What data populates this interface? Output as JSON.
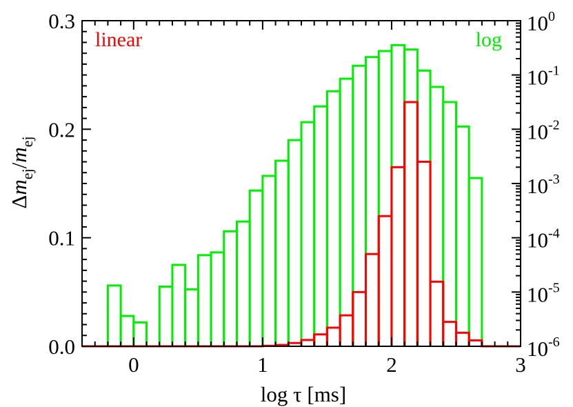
{
  "chart_data": {
    "type": "bar",
    "subtype": "step-histogram",
    "xlabel_prefix": "log",
    "xlabel_symbol": "τ",
    "xlabel_unit": "[ms]",
    "ylabel_delta": "Δ",
    "ylabel_m": "m",
    "ylabel_sub": "ej",
    "ylabel_slash": "/",
    "xlim": [
      -0.4,
      3.0
    ],
    "xticks": [
      {
        "value": 0,
        "label": "0"
      },
      {
        "value": 1,
        "label": "1"
      },
      {
        "value": 2,
        "label": "2"
      },
      {
        "value": 3,
        "label": "3"
      }
    ],
    "ylim_left": [
      0.0,
      0.3
    ],
    "yticks_left": [
      {
        "value": 0.0,
        "label": "0.0"
      },
      {
        "value": 0.1,
        "label": "0.1"
      },
      {
        "value": 0.2,
        "label": "0.2"
      },
      {
        "value": 0.3,
        "label": "0.3"
      }
    ],
    "ylim_right_log10": [
      -6,
      0
    ],
    "yticks_right": [
      {
        "value": 0,
        "base": "10",
        "exp": "0"
      },
      {
        "value": -1,
        "base": "10",
        "exp": "-1"
      },
      {
        "value": -2,
        "base": "10",
        "exp": "-2"
      },
      {
        "value": -3,
        "base": "10",
        "exp": "-3"
      },
      {
        "value": -4,
        "base": "10",
        "exp": "-4"
      },
      {
        "value": -5,
        "base": "10",
        "exp": "-5"
      },
      {
        "value": -6,
        "base": "10",
        "exp": "-6"
      }
    ],
    "bin_width": 0.1,
    "series": [
      {
        "name": "linear",
        "axis": "left",
        "color": "#ff0000",
        "bin_left_edges": [
          -0.4,
          -0.3,
          -0.2,
          -0.1,
          0.0,
          0.1,
          0.2,
          0.3,
          0.4,
          0.5,
          0.6,
          0.7,
          0.8,
          0.9,
          1.0,
          1.1,
          1.2,
          1.3,
          1.4,
          1.5,
          1.6,
          1.7,
          1.8,
          1.9,
          2.0,
          2.1,
          2.2,
          2.3,
          2.4,
          2.5,
          2.6,
          2.7,
          2.8,
          2.9
        ],
        "values": [
          0,
          0,
          0,
          0,
          0,
          0,
          0,
          0,
          0,
          0,
          0,
          0,
          0,
          0,
          0.0005,
          0.0012,
          0.003,
          0.0058,
          0.011,
          0.0172,
          0.0285,
          0.05,
          0.085,
          0.12,
          0.165,
          0.225,
          0.17,
          0.0595,
          0.0225,
          0.0125,
          0.0055,
          0,
          0,
          0
        ]
      },
      {
        "name": "log",
        "axis": "right",
        "color": "#00ee00",
        "bin_left_edges": [
          -0.2,
          -0.1,
          0.0,
          0.2,
          0.3,
          0.4,
          0.5,
          0.6,
          0.7,
          0.8,
          0.9,
          1.0,
          1.1,
          1.2,
          1.3,
          1.4,
          1.5,
          1.6,
          1.7,
          1.8,
          1.9,
          2.0,
          2.1,
          2.2,
          2.3,
          2.4,
          2.5,
          2.6
        ],
        "log10_values": [
          -4.88,
          -5.44,
          -5.56,
          -4.9,
          -4.5,
          -4.95,
          -4.32,
          -4.27,
          -3.88,
          -3.7,
          -3.13,
          -2.86,
          -2.58,
          -2.2,
          -1.87,
          -1.58,
          -1.3,
          -1.07,
          -0.83,
          -0.67,
          -0.56,
          -0.45,
          -0.53,
          -0.92,
          -1.22,
          -1.5,
          -1.95,
          -2.9
        ]
      }
    ]
  }
}
